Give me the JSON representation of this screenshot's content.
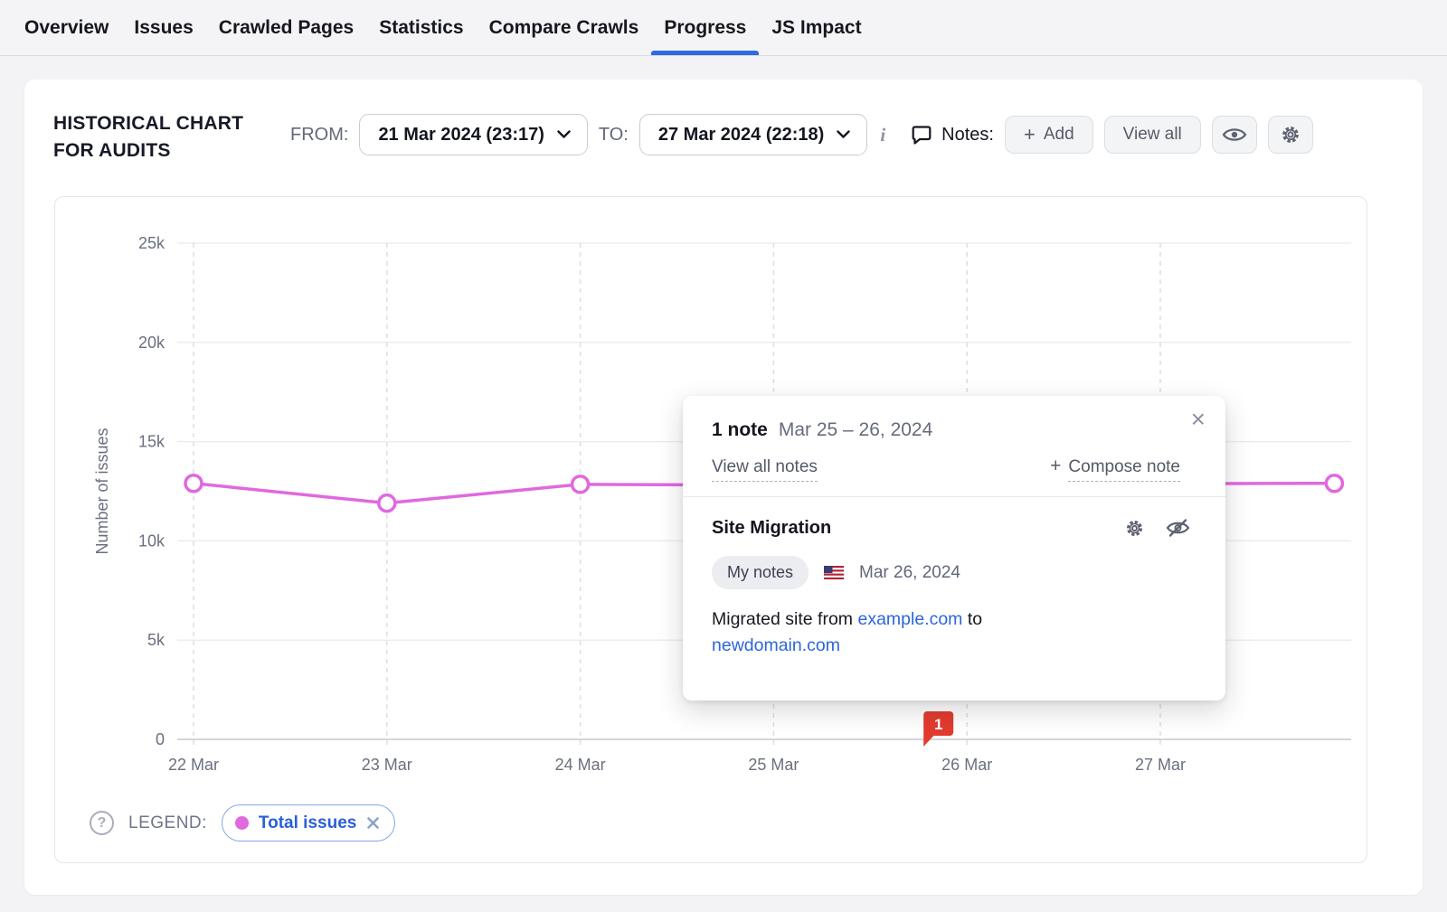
{
  "nav": {
    "active": "Progress",
    "tabs": [
      {
        "label": "Overview"
      },
      {
        "label": "Issues"
      },
      {
        "label": "Crawled Pages"
      },
      {
        "label": "Statistics"
      },
      {
        "label": "Compare Crawls"
      },
      {
        "label": "Progress"
      },
      {
        "label": "JS Impact"
      }
    ]
  },
  "header": {
    "title_line1": "Historical chart",
    "title_line2": "for audits",
    "from_label": "FROM:",
    "from_value": "21 Mar 2024 (23:17)",
    "to_label": "TO:",
    "to_value": "27 Mar 2024 (22:18)",
    "info_glyph": "i",
    "notes_label": "Notes:",
    "add_plus": "+",
    "add_button_label": "Add",
    "view_all_button_label": "View all"
  },
  "chart_data": {
    "type": "line",
    "title": "Historical chart for audits",
    "xlabel": "",
    "ylabel": "Number of issues",
    "ylim": [
      0,
      25000
    ],
    "grid": "horizontal solid, vertical dashed at each date",
    "legend_position": "bottom-left",
    "y_ticks": [
      {
        "v": 0,
        "label": "0"
      },
      {
        "v": 5000,
        "label": "5k"
      },
      {
        "v": 10000,
        "label": "10k"
      },
      {
        "v": 15000,
        "label": "15k"
      },
      {
        "v": 20000,
        "label": "20k"
      },
      {
        "v": 25000,
        "label": "25k"
      }
    ],
    "x_ticks": [
      {
        "day": 0,
        "label": "22 Mar"
      },
      {
        "day": 1,
        "label": "23 Mar"
      },
      {
        "day": 2,
        "label": "24 Mar"
      },
      {
        "day": 3,
        "label": "25 Mar"
      },
      {
        "day": 4,
        "label": "26 Mar"
      },
      {
        "day": 5,
        "label": "27 Mar"
      }
    ],
    "series": [
      {
        "name": "Total issues",
        "color": "#e168df",
        "x_days": [
          0,
          1,
          2,
          3,
          4,
          5.9
        ],
        "values": [
          12900,
          11900,
          12850,
          12800,
          12850,
          12900
        ]
      }
    ],
    "note_marker": {
      "day": 4,
      "label": "1",
      "color": "#e23b2e"
    }
  },
  "legend": {
    "help_glyph": "?",
    "label": "LEGEND:",
    "item_label": "Total issues",
    "item_color": "#e168df"
  },
  "note_popup": {
    "count_label": "1 note",
    "date_range": "Mar 25 – 26, 2024",
    "close_glyph": "×",
    "view_all_link": "View all notes",
    "compose_plus": "+",
    "compose_link": "Compose note",
    "note": {
      "title": "Site Migration",
      "badge": "My notes",
      "date": "Mar 26, 2024",
      "body_prefix": "Migrated site from ",
      "link1": "example.com",
      "body_middle": " to ",
      "link2": "newdomain.com"
    }
  },
  "colors": {
    "accent_blue": "#2f6be0",
    "line_pink": "#e168df",
    "marker_red": "#e23b2e",
    "link_blue": "#2b66db"
  }
}
